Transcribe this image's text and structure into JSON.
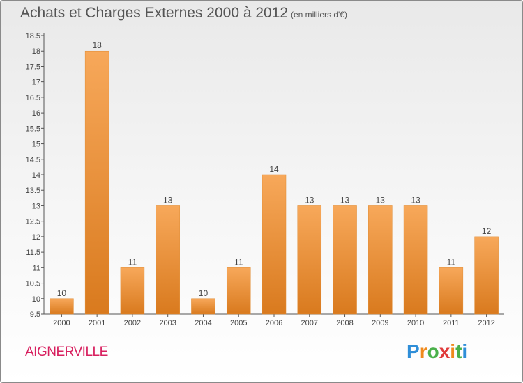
{
  "header": {
    "title": "Achats et Charges Externes 2000 à 2012",
    "unit": "(en milliers d'€)"
  },
  "footer": {
    "commune": "AIGNERVILLE",
    "logo": "Proxiti"
  },
  "colors": {
    "bar_light": "#f7a85a",
    "bar_dark": "#d97a1e",
    "axis": "#555555",
    "commune": "#d8205f"
  },
  "chart_data": {
    "type": "bar",
    "title": "Achats et Charges Externes 2000 à 2012",
    "subtitle": "(en milliers d'€)",
    "xlabel": "",
    "ylabel": "",
    "categories": [
      "2000",
      "2001",
      "2002",
      "2003",
      "2004",
      "2005",
      "2006",
      "2007",
      "2008",
      "2009",
      "2010",
      "2011",
      "2012"
    ],
    "values": [
      10,
      18,
      11,
      13,
      10,
      11,
      14,
      13,
      13,
      13,
      13,
      11,
      12
    ],
    "data_labels": [
      "10",
      "18",
      "11",
      "13",
      "10",
      "11",
      "14",
      "13",
      "13",
      "13",
      "13",
      "11",
      "12"
    ],
    "ylim": [
      9.5,
      18.5
    ],
    "yticks": [
      "9.5",
      "10",
      "10.5",
      "11",
      "11.5",
      "12",
      "12.5",
      "13",
      "13.5",
      "14",
      "14.5",
      "15",
      "15.5",
      "16",
      "16.5",
      "17",
      "17.5",
      "18",
      "18.5"
    ],
    "grid": false,
    "legend": "none"
  }
}
